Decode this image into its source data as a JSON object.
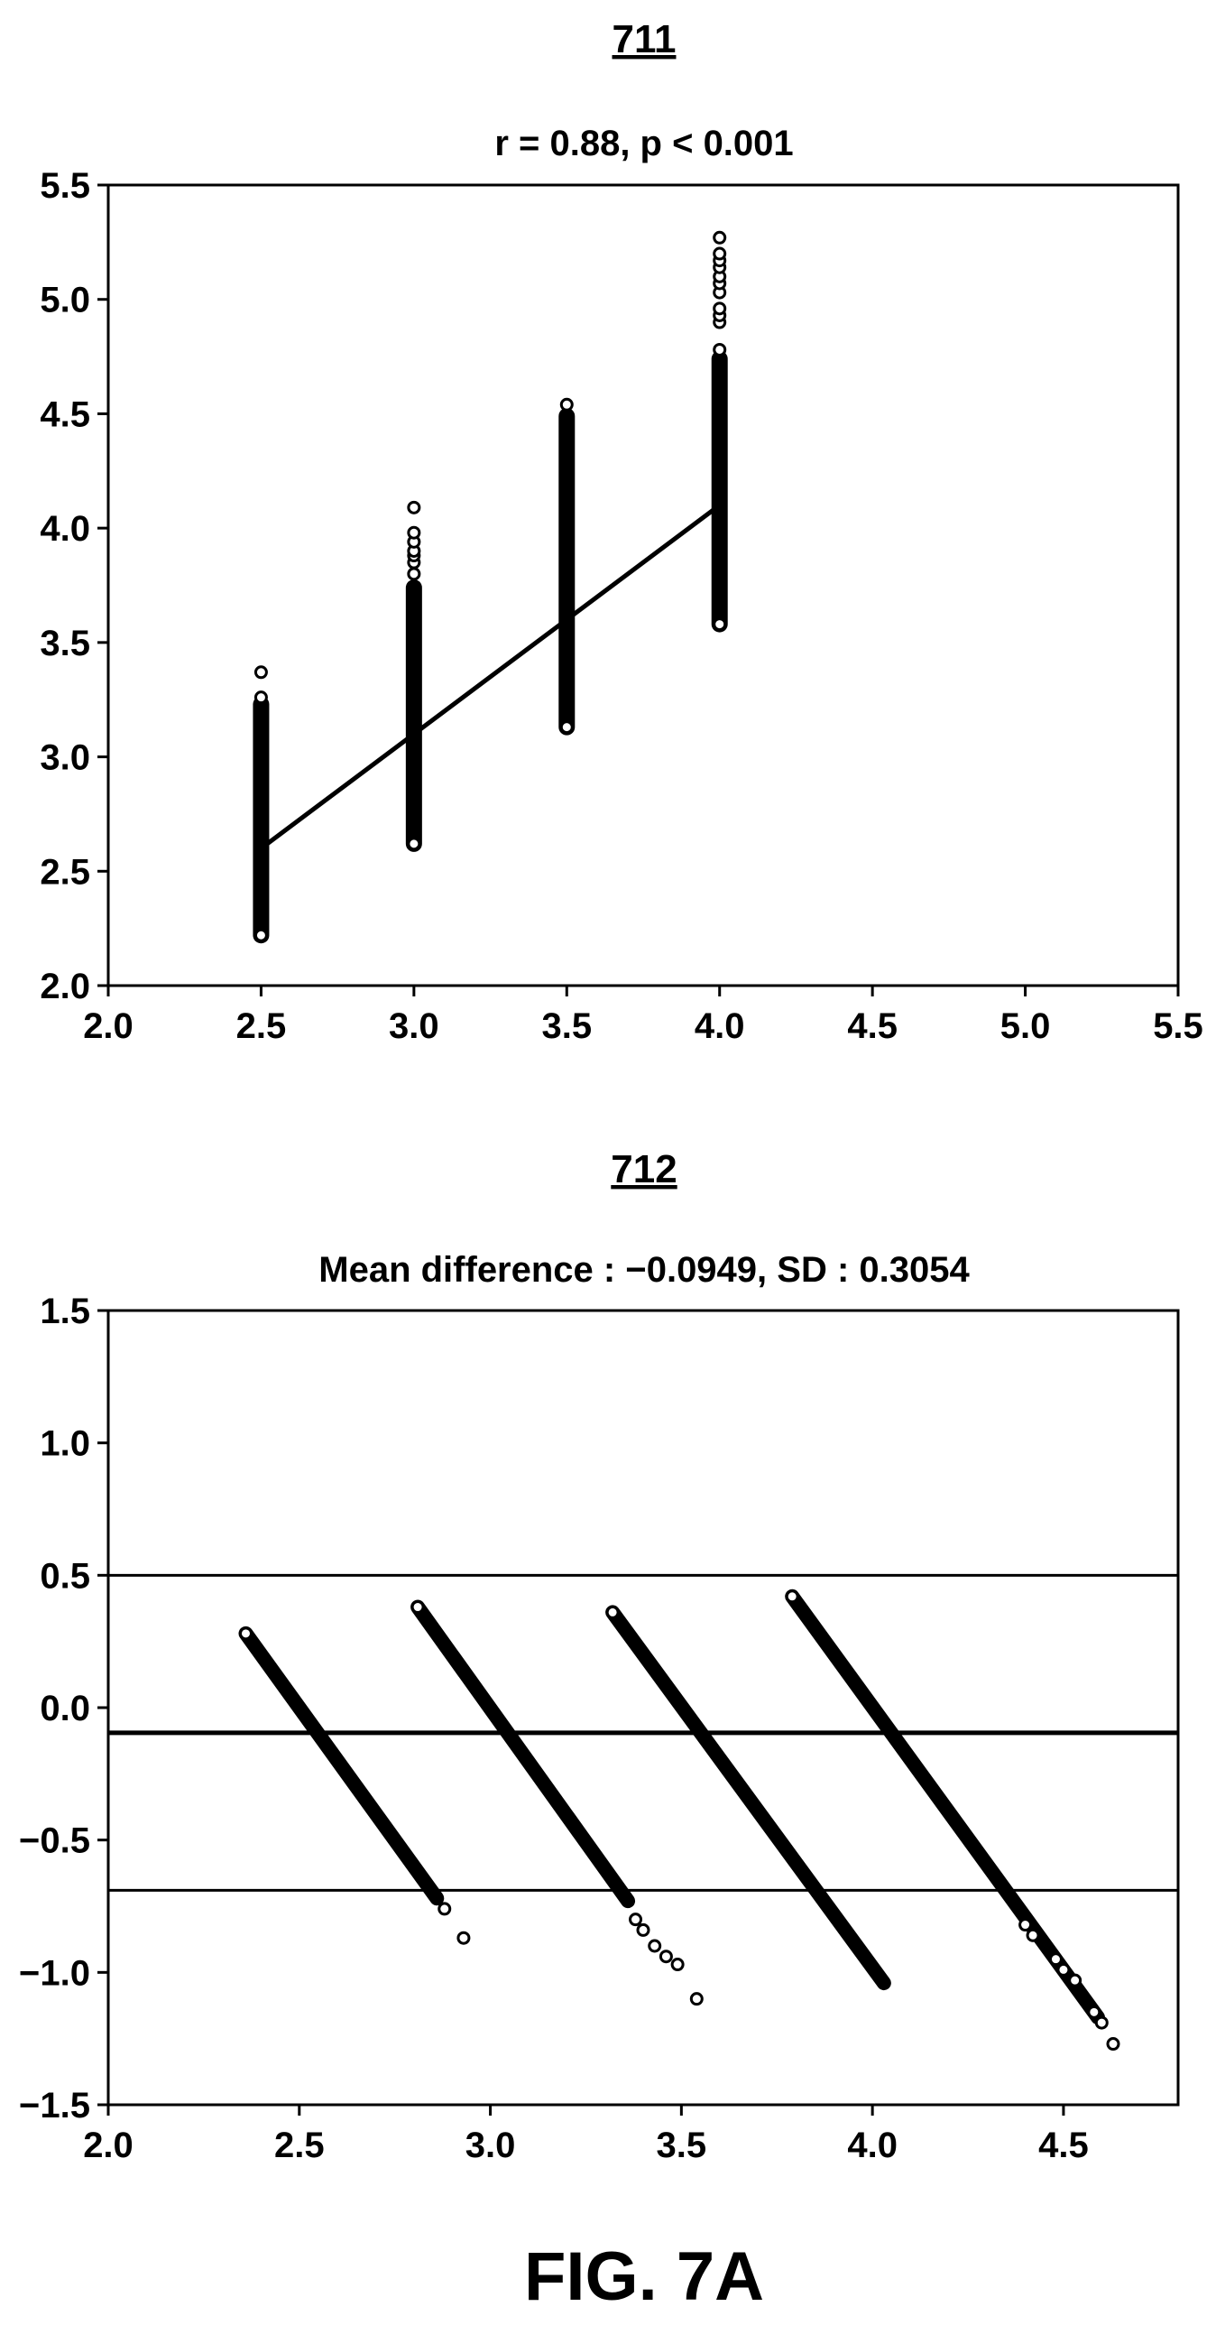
{
  "chart_data": [
    {
      "id": "711",
      "type": "scatter",
      "subtitle": "r = 0.88, p < 0.001",
      "xlim": [
        2.0,
        5.5
      ],
      "ylim": [
        2.0,
        5.5
      ],
      "xticks": [
        "2.0",
        "2.5",
        "3.0",
        "3.5",
        "4.0",
        "4.5",
        "5.0",
        "5.5"
      ],
      "yticks": [
        "2.0",
        "2.5",
        "3.0",
        "3.5",
        "4.0",
        "4.5",
        "5.0",
        "5.5"
      ],
      "groups": [
        {
          "x": 2.5,
          "y_min": 2.22,
          "y_max": 3.23,
          "outliers": [
            3.37,
            3.26
          ]
        },
        {
          "x": 3.0,
          "y_min": 2.62,
          "y_max": 3.74,
          "outliers": [
            3.8,
            3.85,
            3.88,
            3.9,
            3.94,
            3.98,
            4.09
          ]
        },
        {
          "x": 3.5,
          "y_min": 3.13,
          "y_max": 4.49,
          "outliers": [
            4.54
          ]
        },
        {
          "x": 4.0,
          "y_min": 3.58,
          "y_max": 4.74,
          "outliers": [
            4.78,
            4.9,
            4.93,
            4.96,
            5.03,
            5.07,
            5.1,
            5.14,
            5.17,
            5.2,
            5.27
          ]
        }
      ],
      "fit_line": {
        "x": [
          2.5,
          4.0
        ],
        "y": [
          2.6,
          4.1
        ]
      },
      "grid": false,
      "legend": "none"
    },
    {
      "id": "712",
      "type": "scatter",
      "subtitle": "Mean difference : −0.0949, SD : 0.3054",
      "xlim": [
        2.0,
        4.8
      ],
      "ylim": [
        -1.5,
        1.5
      ],
      "xticks": [
        "2.0",
        "2.5",
        "3.0",
        "3.5",
        "4.0",
        "4.5"
      ],
      "yticks": [
        "−1.5",
        "−1.0",
        "−0.5",
        "0.0",
        "0.5",
        "1.0",
        "1.5"
      ],
      "mean_difference": -0.0949,
      "sd": 0.3054,
      "reference_lines": [
        0.5,
        -0.0949,
        -0.69
      ],
      "bands": [
        {
          "x": [
            2.36,
            2.86
          ],
          "y": [
            0.28,
            -0.72
          ]
        },
        {
          "x": [
            2.81,
            3.36
          ],
          "y": [
            0.38,
            -0.73
          ]
        },
        {
          "x": [
            3.32,
            4.03
          ],
          "y": [
            0.36,
            -1.04
          ]
        },
        {
          "x": [
            3.79,
            4.59
          ],
          "y": [
            0.42,
            -1.17
          ]
        }
      ],
      "outliers": [
        {
          "x": 2.36,
          "y": 0.28
        },
        {
          "x": 2.81,
          "y": 0.38
        },
        {
          "x": 2.88,
          "y": -0.76
        },
        {
          "x": 2.93,
          "y": -0.87
        },
        {
          "x": 3.32,
          "y": 0.36
        },
        {
          "x": 3.38,
          "y": -0.8
        },
        {
          "x": 3.4,
          "y": -0.84
        },
        {
          "x": 3.43,
          "y": -0.9
        },
        {
          "x": 3.46,
          "y": -0.94
        },
        {
          "x": 3.49,
          "y": -0.97
        },
        {
          "x": 3.54,
          "y": -1.1
        },
        {
          "x": 3.79,
          "y": 0.42
        },
        {
          "x": 4.4,
          "y": -0.82
        },
        {
          "x": 4.42,
          "y": -0.86
        },
        {
          "x": 4.48,
          "y": -0.95
        },
        {
          "x": 4.5,
          "y": -0.99
        },
        {
          "x": 4.53,
          "y": -1.03
        },
        {
          "x": 4.58,
          "y": -1.15
        },
        {
          "x": 4.6,
          "y": -1.19
        },
        {
          "x": 4.63,
          "y": -1.27
        }
      ],
      "grid": false,
      "legend": "none"
    }
  ],
  "figure_caption": "FIG. 7A"
}
